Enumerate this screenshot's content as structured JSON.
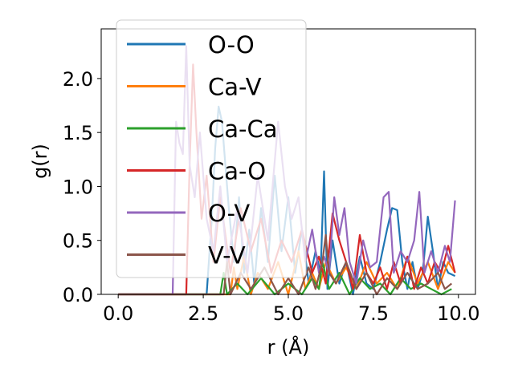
{
  "chart_data": {
    "type": "line",
    "xlabel": "r (Å)",
    "ylabel": "g(r)",
    "xlim": [
      -0.5,
      10.5
    ],
    "ylim": [
      0,
      2.46
    ],
    "xticks": [
      "0.0",
      "2.5",
      "5.0",
      "7.5",
      "10.0"
    ],
    "yticks": [
      "0.0",
      "0.5",
      "1.0",
      "1.5",
      "2.0"
    ],
    "grid": false,
    "legend_placement": "top-left",
    "series": [
      {
        "name": "O-O",
        "color": "#1f77b4",
        "x": [
          0.0,
          2.6,
          2.75,
          2.85,
          2.95,
          3.05,
          3.15,
          3.25,
          3.4,
          3.55,
          3.7,
          3.85,
          4.0,
          4.2,
          4.4,
          4.6,
          4.8,
          5.0,
          5.2,
          5.4,
          5.6,
          5.8,
          5.95,
          6.05,
          6.15,
          6.3,
          6.5,
          6.7,
          6.9,
          7.1,
          7.3,
          7.5,
          7.7,
          7.9,
          8.05,
          8.2,
          8.35,
          8.5,
          8.65,
          8.8,
          8.95,
          9.1,
          9.25,
          9.4,
          9.55,
          9.7,
          9.9
        ],
        "y": [
          0.0,
          0.0,
          0.7,
          1.35,
          1.74,
          1.6,
          1.2,
          0.8,
          0.3,
          0.9,
          0.2,
          0.6,
          0.1,
          0.8,
          0.3,
          1.1,
          0.4,
          0.9,
          0.2,
          0.6,
          0.1,
          0.4,
          0.2,
          1.14,
          0.05,
          0.5,
          0.1,
          0.3,
          0.0,
          0.35,
          0.1,
          0.05,
          0.3,
          0.6,
          0.8,
          0.78,
          0.3,
          0.05,
          0.3,
          0.05,
          0.2,
          0.72,
          0.4,
          0.05,
          0.3,
          0.2,
          0.17
        ]
      },
      {
        "name": "Ca-V",
        "color": "#ff7f0e",
        "x": [
          0.0,
          3.3,
          3.4,
          3.5,
          3.7,
          3.9,
          4.1,
          4.4,
          4.7,
          5.0,
          5.3,
          5.5,
          5.7,
          5.9,
          6.1,
          6.4,
          6.7,
          7.0,
          7.3,
          7.6,
          7.9,
          8.2,
          8.5,
          8.8,
          9.1,
          9.4,
          9.7,
          9.9
        ],
        "y": [
          0.0,
          0.0,
          0.25,
          0.05,
          0.35,
          0.0,
          0.2,
          0.05,
          0.3,
          0.0,
          0.4,
          0.05,
          0.2,
          0.05,
          0.3,
          0.1,
          0.25,
          0.05,
          0.3,
          0.1,
          0.2,
          0.05,
          0.35,
          0.1,
          0.3,
          0.05,
          0.3,
          0.2
        ]
      },
      {
        "name": "Ca-Ca",
        "color": "#2ca02c",
        "x": [
          0.0,
          3.0,
          3.1,
          3.2,
          3.5,
          3.8,
          4.2,
          4.6,
          5.0,
          5.4,
          5.7,
          5.9,
          6.0,
          6.2,
          6.5,
          6.8,
          7.1,
          7.4,
          7.7,
          8.0,
          8.3,
          8.6,
          8.9,
          9.2,
          9.5,
          9.8
        ],
        "y": [
          0.0,
          0.0,
          0.2,
          0.0,
          0.1,
          0.0,
          0.15,
          0.0,
          0.1,
          0.0,
          0.15,
          0.05,
          0.3,
          0.05,
          0.2,
          0.0,
          0.15,
          0.05,
          0.1,
          0.0,
          0.15,
          0.05,
          0.1,
          0.05,
          0.0,
          0.05
        ]
      },
      {
        "name": "Ca-O",
        "color": "#d62728",
        "x": [
          0.0,
          2.0,
          2.1,
          2.2,
          2.3,
          2.45,
          2.6,
          2.8,
          3.0,
          3.3,
          3.6,
          3.9,
          4.2,
          4.5,
          4.8,
          5.1,
          5.4,
          5.7,
          5.9,
          6.1,
          6.3,
          6.5,
          6.7,
          6.9,
          7.1,
          7.3,
          7.5,
          7.7,
          7.9,
          8.1,
          8.3,
          8.5,
          8.7,
          8.9,
          9.1,
          9.3,
          9.5,
          9.7,
          9.9
        ],
        "y": [
          0.0,
          0.0,
          1.2,
          2.13,
          1.5,
          0.7,
          1.1,
          0.3,
          0.9,
          0.2,
          0.8,
          0.4,
          0.7,
          0.2,
          0.5,
          0.3,
          0.6,
          0.2,
          0.35,
          0.1,
          0.75,
          0.5,
          0.3,
          0.05,
          0.55,
          0.2,
          0.1,
          0.25,
          0.05,
          0.3,
          0.1,
          0.35,
          0.05,
          0.25,
          0.1,
          0.3,
          0.2,
          0.45,
          0.2
        ]
      },
      {
        "name": "O-V",
        "color": "#9467bd",
        "x": [
          0.0,
          1.6,
          1.7,
          1.8,
          1.9,
          2.0,
          2.1,
          2.25,
          2.4,
          2.6,
          2.8,
          3.0,
          3.2,
          3.5,
          3.8,
          4.1,
          4.4,
          4.7,
          4.9,
          5.1,
          5.3,
          5.5,
          5.7,
          5.9,
          6.05,
          6.2,
          6.35,
          6.5,
          6.65,
          6.8,
          7.0,
          7.2,
          7.4,
          7.6,
          7.8,
          7.95,
          8.1,
          8.3,
          8.5,
          8.7,
          8.85,
          9.0,
          9.2,
          9.4,
          9.6,
          9.75,
          9.9
        ],
        "y": [
          0.0,
          0.0,
          1.6,
          1.4,
          1.3,
          2.3,
          1.2,
          0.9,
          1.5,
          0.7,
          0.4,
          1.0,
          0.3,
          0.8,
          0.2,
          1.1,
          0.5,
          1.6,
          1.0,
          0.7,
          0.9,
          0.3,
          0.6,
          0.2,
          0.35,
          0.2,
          0.9,
          0.55,
          0.8,
          0.3,
          0.1,
          0.5,
          0.25,
          0.3,
          0.9,
          0.95,
          0.2,
          0.4,
          0.3,
          0.5,
          0.95,
          0.2,
          0.4,
          0.2,
          0.45,
          0.3,
          0.87
        ]
      },
      {
        "name": "V-V",
        "color": "#8c564b",
        "x": [
          0.0,
          3.1,
          3.2,
          3.3,
          3.6,
          3.9,
          4.3,
          4.7,
          5.0,
          5.3,
          5.6,
          5.8,
          6.0,
          6.1,
          6.2,
          6.4,
          6.7,
          7.0,
          7.3,
          7.6,
          7.9,
          8.2,
          8.5,
          8.8,
          9.1,
          9.4,
          9.6,
          9.8
        ],
        "y": [
          0.0,
          0.0,
          0.3,
          0.0,
          0.2,
          0.05,
          0.25,
          0.0,
          0.15,
          0.0,
          0.25,
          0.05,
          0.3,
          0.55,
          0.2,
          0.1,
          0.3,
          0.05,
          0.2,
          0.0,
          0.15,
          0.05,
          0.2,
          0.05,
          0.1,
          0.2,
          0.05,
          0.1
        ]
      }
    ]
  }
}
